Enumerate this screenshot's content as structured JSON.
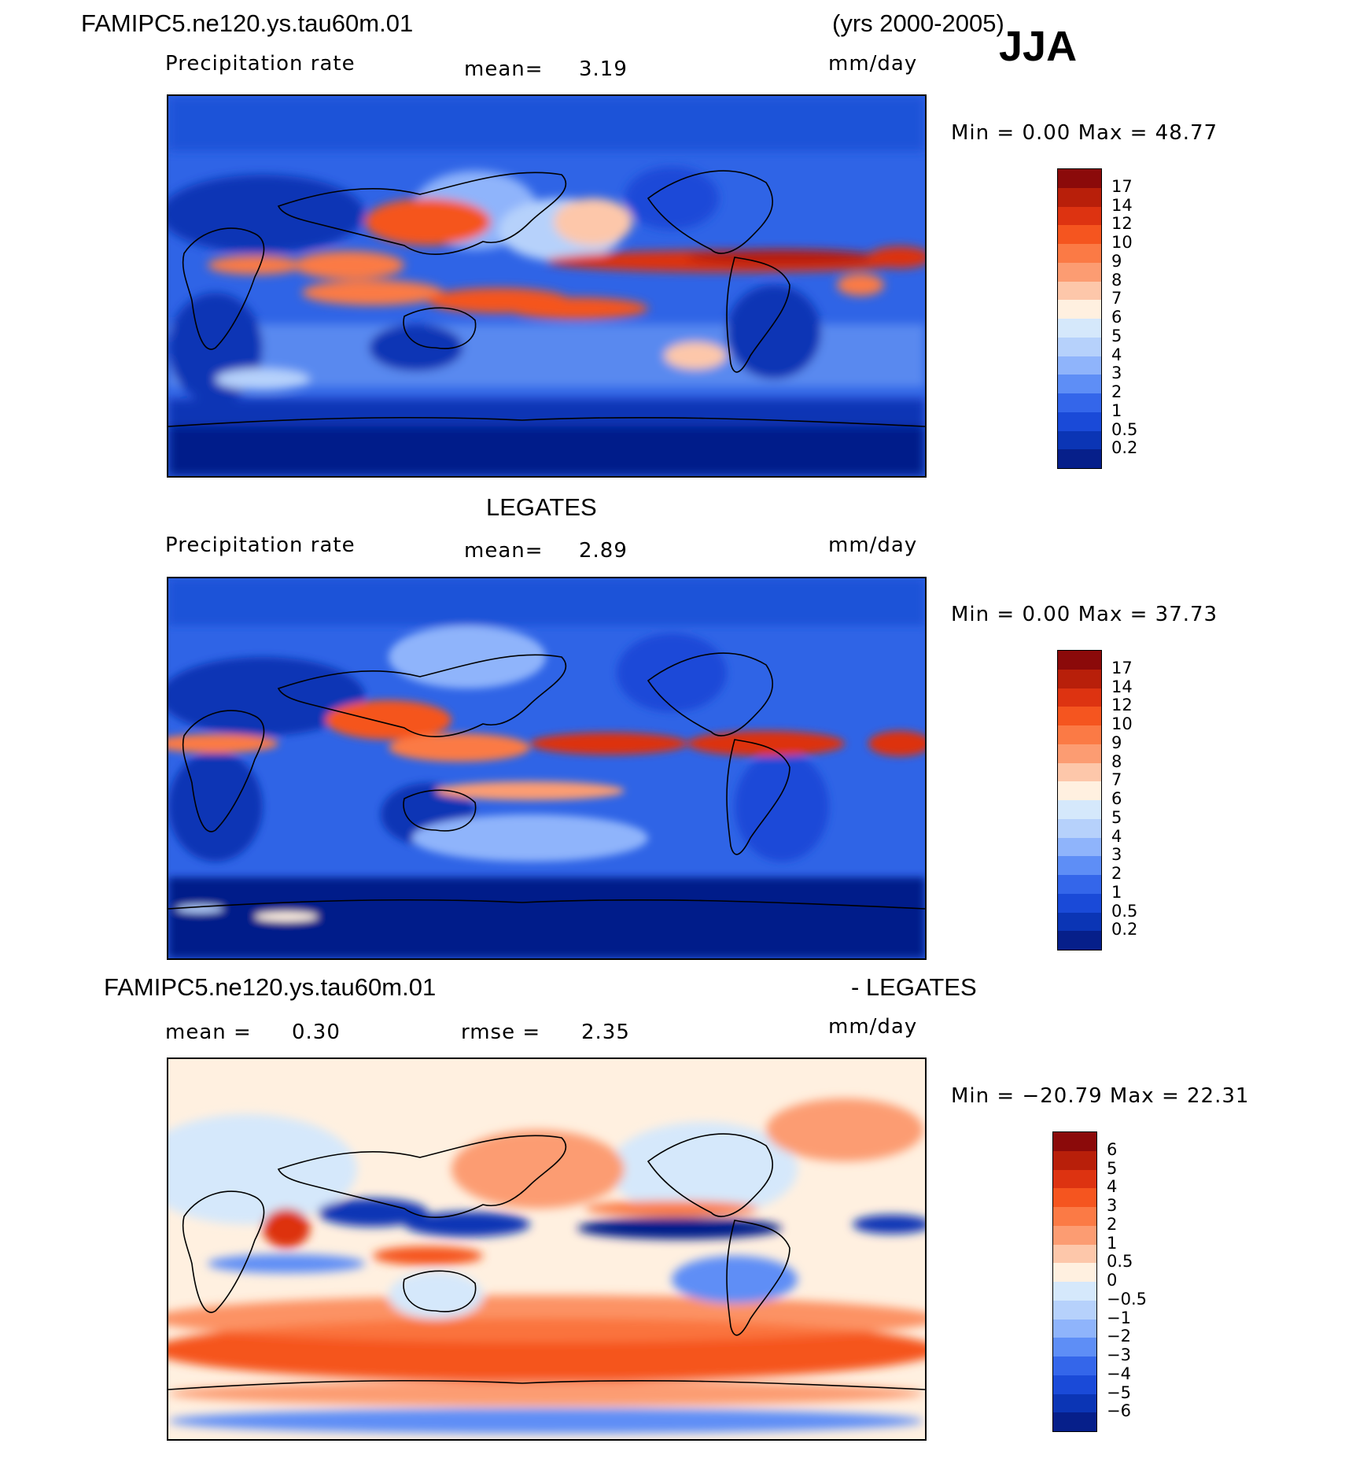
{
  "header": {
    "case_name": "FAMIPC5.ne120.ys.tau60m.01",
    "years": "(yrs 2000-2005)",
    "season": "JJA"
  },
  "panels": [
    {
      "id": "model",
      "title": "",
      "left_label": "Precipitation rate",
      "mid_label": "mean=",
      "mid_value": "3.19",
      "extra_label": "",
      "extra_value": "",
      "units": "mm/day",
      "minmax": "Min =    0.00  Max =    48.77"
    },
    {
      "id": "obs",
      "title": "LEGATES",
      "left_label": "Precipitation rate",
      "mid_label": "mean=",
      "mid_value": "2.89",
      "extra_label": "",
      "extra_value": "",
      "units": "mm/day",
      "minmax": "Min =    0.00  Max =    37.73"
    },
    {
      "id": "diff",
      "title_left": "FAMIPC5.ne120.ys.tau60m.01",
      "title_right": "- LEGATES",
      "left_label": "mean =",
      "left_value": "0.30",
      "mid_label": "rmse =",
      "mid_value": "2.35",
      "units": "mm/day",
      "minmax": "Min =  −20.79  Max =    22.31"
    }
  ],
  "colorbars": {
    "precip": {
      "ticks": [
        "17",
        "14",
        "12",
        "10",
        "9",
        "8",
        "7",
        "6",
        "5",
        "4",
        "3",
        "2",
        "1",
        "0.5",
        "0.2"
      ],
      "colors": [
        "#8b0a0a",
        "#b81f0a",
        "#dd3311",
        "#f5551f",
        "#fb7a45",
        "#fc9c72",
        "#fdc7aa",
        "#fff0e0",
        "#d5e8fb",
        "#b6d1fb",
        "#8fb4fb",
        "#5e8ef6",
        "#3466ea",
        "#1a4ad8",
        "#0b35b5",
        "#061f8a"
      ]
    },
    "diff": {
      "ticks": [
        "6",
        "5",
        "4",
        "3",
        "2",
        "1",
        "0.5",
        "0",
        "−0.5",
        "−1",
        "−2",
        "−3",
        "−4",
        "−5",
        "−6"
      ],
      "colors": [
        "#8b0a0a",
        "#b81f0a",
        "#dd3311",
        "#f5551f",
        "#fb7a45",
        "#fc9c72",
        "#fdc7aa",
        "#fff0e0",
        "#d5e8fb",
        "#b6d1fb",
        "#8fb4fb",
        "#5e8ef6",
        "#3466ea",
        "#1a4ad8",
        "#0b35b5",
        "#061f8a"
      ]
    }
  },
  "chart_data": [
    {
      "type": "heatmap",
      "title": "FAMIPC5.ne120.ys.tau60m.01",
      "subtitle": "Precipitation rate",
      "units": "mm/day",
      "mean": 3.19,
      "min": 0.0,
      "max": 48.77,
      "contour_levels": [
        0.2,
        0.5,
        1,
        2,
        3,
        4,
        5,
        6,
        7,
        8,
        9,
        10,
        12,
        14,
        17
      ],
      "season": "JJA",
      "years": "2000-2005"
    },
    {
      "type": "heatmap",
      "title": "LEGATES",
      "subtitle": "Precipitation rate",
      "units": "mm/day",
      "mean": 2.89,
      "min": 0.0,
      "max": 37.73,
      "contour_levels": [
        0.2,
        0.5,
        1,
        2,
        3,
        4,
        5,
        6,
        7,
        8,
        9,
        10,
        12,
        14,
        17
      ]
    },
    {
      "type": "heatmap",
      "title": "FAMIPC5.ne120.ys.tau60m.01 - LEGATES",
      "units": "mm/day",
      "mean": 0.3,
      "rmse": 2.35,
      "min": -20.79,
      "max": 22.31,
      "contour_levels": [
        -6,
        -5,
        -4,
        -3,
        -2,
        -1,
        -0.5,
        0,
        0.5,
        1,
        2,
        3,
        4,
        5,
        6
      ]
    }
  ]
}
